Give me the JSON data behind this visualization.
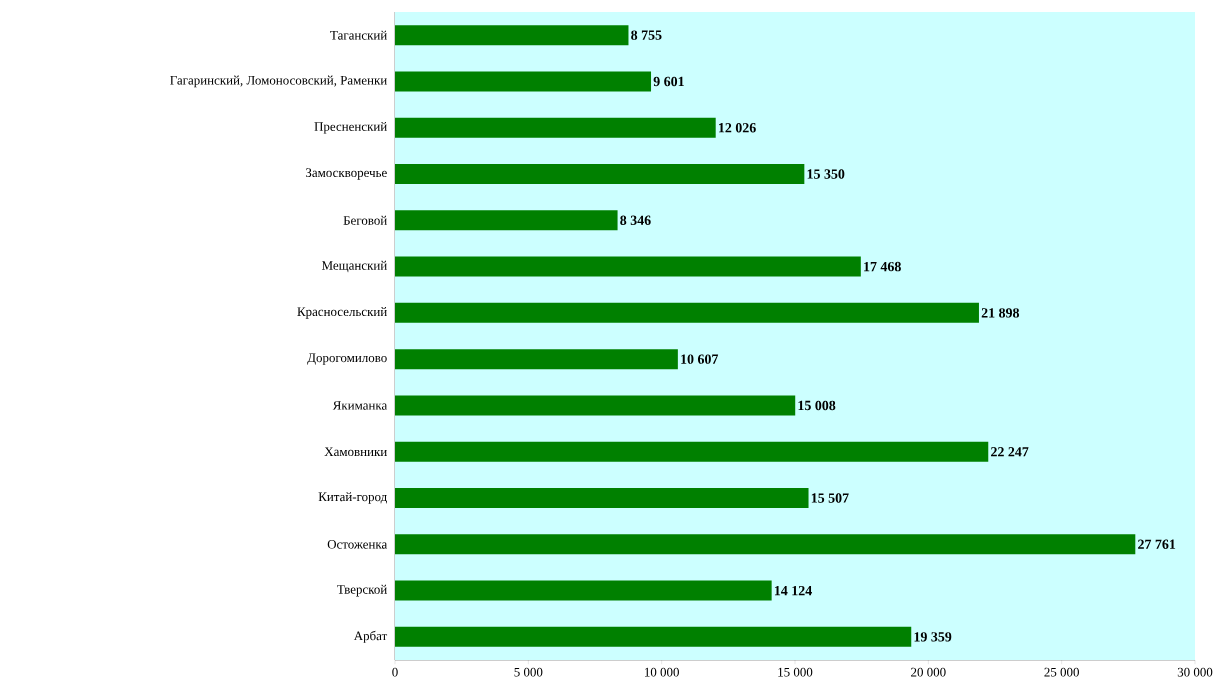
{
  "chart_data": {
    "type": "bar",
    "orientation": "horizontal",
    "categories": [
      "Таганский",
      "Гагаринский, Ломоносовский, Раменки",
      "Пресненский",
      "Замоскворечье",
      "Беговой",
      "Мещанский",
      "Красносельский",
      "Дорогомилово",
      "Якиманка",
      "Хамовники",
      "Китай-город",
      "Остоженка",
      "Тверской",
      "Арбат"
    ],
    "values": [
      8755,
      9601,
      12026,
      15350,
      8346,
      17468,
      21898,
      10607,
      15008,
      22247,
      15507,
      27761,
      14124,
      19359
    ],
    "value_labels": [
      "8 755",
      "9 601",
      "12 026",
      "15 350",
      "8 346",
      "17 468",
      "21 898",
      "10 607",
      "15 008",
      "22 247",
      "15 507",
      "27 761",
      "14 124",
      "19 359"
    ],
    "color": "#008000",
    "xlim": [
      0,
      30000
    ],
    "xticks": [
      0,
      {
        "value": 5000,
        "label": "5 000"
      },
      {
        "value": 10000,
        "label": "10 000"
      },
      {
        "value": 15000,
        "label": "15 000"
      },
      {
        "value": 20000,
        "label": "20 000"
      },
      {
        "value": 25000,
        "label": "25 000"
      },
      {
        "value": 30000,
        "label": "30 000"
      }
    ],
    "grid": false
  }
}
